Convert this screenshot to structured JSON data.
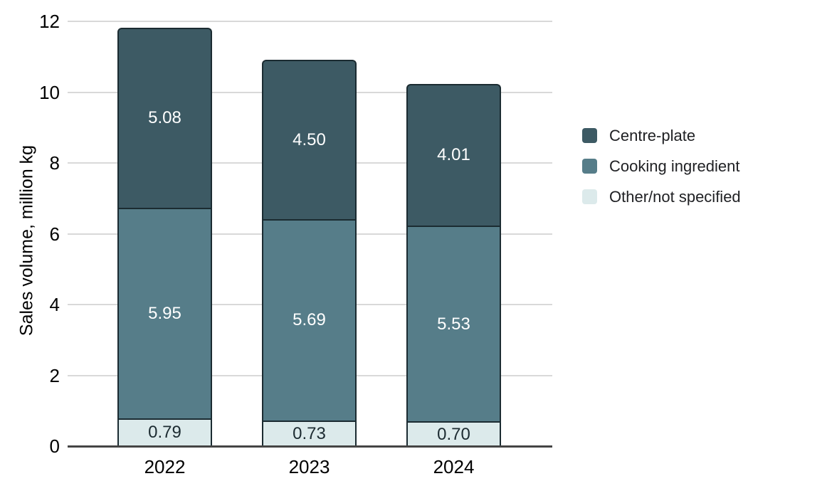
{
  "chart_data": {
    "type": "bar",
    "stacked": true,
    "title": "",
    "xlabel": "",
    "ylabel": "Sales volume, million kg",
    "categories": [
      "2022",
      "2023",
      "2024"
    ],
    "series": [
      {
        "name": "Other/not specified",
        "values": [
          0.79,
          0.73,
          0.7
        ],
        "labels": [
          "0.79",
          "0.73",
          "0.70"
        ],
        "color": "#dceaeb",
        "label_color": "#1c2b31"
      },
      {
        "name": "Cooking ingredient",
        "values": [
          5.95,
          5.69,
          5.53
        ],
        "labels": [
          "5.95",
          "5.69",
          "5.53"
        ],
        "color": "#567d89",
        "label_color": "#ffffff"
      },
      {
        "name": "Centre-plate",
        "values": [
          5.08,
          4.5,
          4.01
        ],
        "labels": [
          "5.08",
          "4.50",
          "4.01"
        ],
        "color": "#3d5a64",
        "label_color": "#ffffff"
      }
    ],
    "totals": [
      11.82,
      10.92,
      10.24
    ],
    "ylim": [
      0,
      12
    ],
    "yticks": [
      0,
      2,
      4,
      6,
      8,
      10,
      12
    ],
    "grid": true,
    "legend_position": "right",
    "legend": {
      "items": [
        {
          "label": "Centre-plate",
          "color": "#3d5a64"
        },
        {
          "label": "Cooking ingredient",
          "color": "#567d89"
        },
        {
          "label": "Other/not specified",
          "color": "#dceaeb"
        }
      ]
    },
    "colors": {
      "background": "#ffffff",
      "grid": "#d9d9d9",
      "axis_line": "#454545",
      "bar_border": "#1b2b31",
      "tick_text": "#000000",
      "legend_text": "#202124"
    }
  }
}
